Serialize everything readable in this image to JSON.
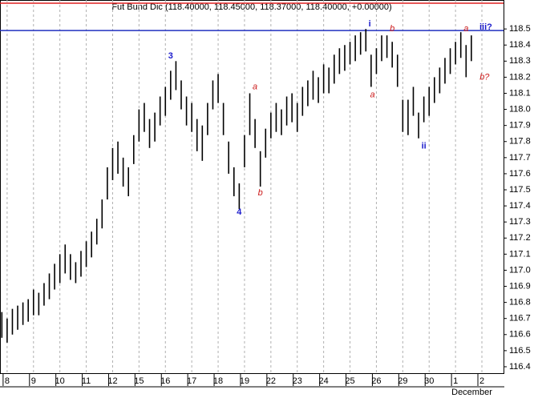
{
  "chart_data": {
    "type": "range-bar",
    "title": "Fut Bund Dic (118.40000, 118.45000, 118.37000, 118.40000, +0.00000)",
    "x": [
      -0.2,
      0,
      0.2,
      0.4,
      0.6,
      0.8,
      1,
      1.2,
      1.4,
      1.6,
      1.8,
      2,
      2.2,
      2.4,
      2.6,
      2.8,
      3,
      3.2,
      3.4,
      3.6,
      3.8,
      4,
      4.2,
      4.4,
      4.6,
      4.8,
      5,
      5.2,
      5.4,
      5.6,
      5.8,
      6,
      6.2,
      6.4,
      6.6,
      6.8,
      7,
      7.2,
      7.4,
      7.6,
      7.8,
      8,
      8.2,
      8.4,
      8.6,
      8.8,
      9,
      9.2,
      9.4,
      9.6,
      9.8,
      10,
      10.2,
      10.4,
      10.6,
      10.8,
      11,
      11.2,
      11.4,
      11.6,
      11.8,
      12,
      12.2,
      12.4,
      12.6,
      12.8,
      13,
      13.2,
      13.4,
      13.6,
      13.8,
      14,
      14.2,
      14.4,
      14.6,
      14.8,
      15,
      15.2,
      15.4,
      15.6,
      15.8,
      16,
      16.2,
      16.4,
      16.6,
      16.8,
      17,
      17.2,
      17.4,
      17.6
    ],
    "high": [
      116.74,
      116.7,
      116.76,
      116.78,
      116.8,
      116.82,
      116.88,
      116.86,
      116.92,
      116.98,
      117.04,
      117.1,
      117.16,
      117.1,
      117.05,
      117.12,
      117.18,
      117.24,
      117.32,
      117.44,
      117.64,
      117.76,
      117.8,
      117.7,
      117.64,
      117.84,
      118.0,
      118.04,
      117.94,
      117.98,
      118.08,
      118.14,
      118.24,
      118.3,
      118.18,
      118.08,
      118.04,
      117.94,
      117.9,
      118.04,
      118.18,
      118.22,
      118.04,
      117.8,
      117.64,
      117.54,
      117.84,
      118.1,
      117.94,
      117.74,
      117.88,
      117.98,
      118.04,
      118.0,
      118.08,
      118.1,
      118.04,
      118.14,
      118.18,
      118.24,
      118.2,
      118.28,
      118.26,
      118.34,
      118.38,
      118.4,
      118.42,
      118.46,
      118.48,
      118.5,
      118.34,
      118.38,
      118.46,
      118.46,
      118.42,
      118.34,
      118.06,
      118.06,
      118.14,
      117.98,
      118.08,
      118.14,
      118.2,
      118.26,
      118.32,
      118.38,
      118.42,
      118.48,
      118.4,
      118.46
    ],
    "low": [
      116.58,
      116.55,
      116.6,
      116.63,
      116.66,
      116.68,
      116.72,
      116.72,
      116.78,
      116.82,
      116.88,
      116.92,
      116.98,
      116.94,
      116.92,
      116.96,
      117.02,
      117.08,
      117.16,
      117.26,
      117.44,
      117.56,
      117.6,
      117.52,
      117.46,
      117.66,
      117.8,
      117.86,
      117.76,
      117.8,
      117.9,
      117.96,
      118.06,
      118.12,
      118.0,
      117.9,
      117.86,
      117.74,
      117.68,
      117.84,
      118.0,
      118.04,
      117.84,
      117.6,
      117.46,
      117.38,
      117.64,
      117.84,
      117.76,
      117.52,
      117.7,
      117.82,
      117.86,
      117.84,
      117.9,
      117.92,
      117.86,
      117.96,
      118.02,
      118.06,
      118.04,
      118.1,
      118.1,
      118.16,
      118.22,
      118.24,
      118.28,
      118.3,
      118.34,
      118.36,
      118.14,
      118.22,
      118.3,
      118.32,
      118.26,
      118.14,
      117.86,
      117.84,
      117.96,
      117.82,
      117.92,
      117.96,
      118.04,
      118.1,
      118.16,
      118.22,
      118.28,
      118.32,
      118.2,
      118.3
    ],
    "color": "#000000",
    "xlim": [
      -0.27,
      18.82
    ],
    "xticks": [
      {
        "value": 0,
        "label": "8"
      },
      {
        "value": 1,
        "label": "9"
      },
      {
        "value": 2,
        "label": "10"
      },
      {
        "value": 3,
        "label": "11"
      },
      {
        "value": 4,
        "label": "12"
      },
      {
        "value": 5,
        "label": "15"
      },
      {
        "value": 6,
        "label": "16"
      },
      {
        "value": 7,
        "label": "17"
      },
      {
        "value": 8,
        "label": "18"
      },
      {
        "value": 9,
        "label": "19"
      },
      {
        "value": 10,
        "label": "22"
      },
      {
        "value": 11,
        "label": "23"
      },
      {
        "value": 12,
        "label": "24"
      },
      {
        "value": 13,
        "label": "25"
      },
      {
        "value": 14,
        "label": "26"
      },
      {
        "value": 15,
        "label": "29"
      },
      {
        "value": 16,
        "label": "30"
      },
      {
        "value": 17,
        "label": "1"
      },
      {
        "value": 18,
        "label": "2"
      }
    ],
    "month_label": "December",
    "ylim": [
      116.36,
      118.68
    ],
    "yticks": [
      116.4,
      116.5,
      116.6,
      116.7,
      116.8,
      116.9,
      {
        "value": 117,
        "label": "117.0"
      },
      117.1,
      117.2,
      117.3,
      117.4,
      117.5,
      117.6,
      117.7,
      117.8,
      117.9,
      {
        "value": 118,
        "label": "118.0"
      },
      118.1,
      118.2,
      118.3,
      118.4,
      118.5
    ],
    "grid": true,
    "hlines": [
      {
        "value": 118.66,
        "color": "#e02020"
      },
      {
        "value": 118.49,
        "color": "#2030c0"
      }
    ],
    "annotations": [
      {
        "text": "3",
        "x": 6.2,
        "y": 118.33,
        "color": "#1a1acc"
      },
      {
        "text": "4",
        "x": 8.8,
        "y": 117.36,
        "color": "#1a1acc"
      },
      {
        "text": "a",
        "x": 9.4,
        "y": 118.14,
        "color": "#cc1a1a"
      },
      {
        "text": "b",
        "x": 9.6,
        "y": 117.48,
        "color": "#cc1a1a"
      },
      {
        "text": "i",
        "x": 13.75,
        "y": 118.53,
        "color": "#1a1acc"
      },
      {
        "text": "a",
        "x": 13.85,
        "y": 118.09,
        "color": "#cc1a1a"
      },
      {
        "text": "b",
        "x": 14.6,
        "y": 118.5,
        "color": "#cc1a1a"
      },
      {
        "text": "ii",
        "x": 15.8,
        "y": 117.77,
        "color": "#1a1acc"
      },
      {
        "text": "a",
        "x": 17.4,
        "y": 118.5,
        "color": "#cc1a1a"
      },
      {
        "text": "iii?",
        "x": 18.15,
        "y": 118.51,
        "color": "#1a1acc"
      },
      {
        "text": "b?",
        "x": 18.1,
        "y": 118.2,
        "color": "#cc1a1a"
      }
    ]
  }
}
